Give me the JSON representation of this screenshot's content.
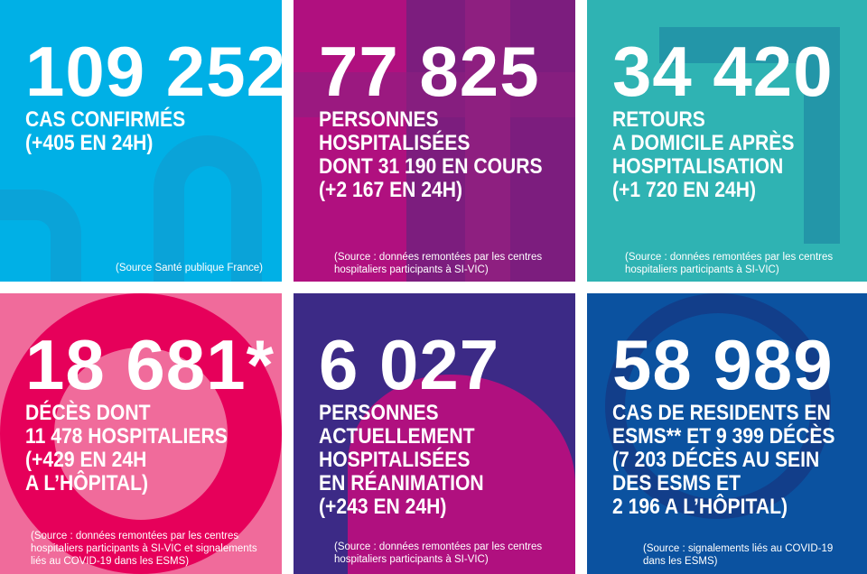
{
  "panels": [
    {
      "number": "109 252",
      "label": "CAS CONFIRMÉS\n(+405 EN 24H)",
      "source": "(Source Santé publique France)",
      "color": "#00b0e6"
    },
    {
      "number": "77 825",
      "label": "PERSONNES\nHOSPITALISÉES\nDONT 31 190 EN COURS\n(+2 167 EN 24H)",
      "source": "(Source : données remontées par les centres\nhospitaliers participants à SI-VIC)",
      "color": "#b0107f"
    },
    {
      "number": "34 420",
      "label": "RETOURS\nA DOMICILE APRÈS\nHOSPITALISATION\n(+1 720 EN 24H)",
      "source": "(Source : données remontées par les centres\nhospitaliers participants à SI-VIC)",
      "color": "#2fb3b3"
    },
    {
      "number": "18 681*",
      "label": "DÉCÈS DONT\n11 478 HOSPITALIERS\n(+429 EN 24H\nA L’HÔPITAL)",
      "source": "(Source : données remontées par les centres\nhospitaliers participants à SI-VIC et signalements\nliés au COVID-19 dans les ESMS)",
      "color": "#e6005a"
    },
    {
      "number": "6 027",
      "label": "PERSONNES\nACTUELLEMENT\nHOSPITALISÉES\nEN RÉANIMATION\n(+243 EN 24H)",
      "source": "(Source : données remontées par les centres\nhospitaliers participants à SI-VIC)",
      "color": "#3c2a86"
    },
    {
      "number": "58 989",
      "label": "CAS DE RESIDENTS EN\nESMS** ET 9 399 DÉCÈS\n(7 203 DÉCÈS AU SEIN\nDES ESMS ET\n2 196 A L’HÔPITAL)",
      "source": "(Source : signalements liés au COVID-19\ndans les ESMS)",
      "color": "#0b52a0"
    }
  ]
}
